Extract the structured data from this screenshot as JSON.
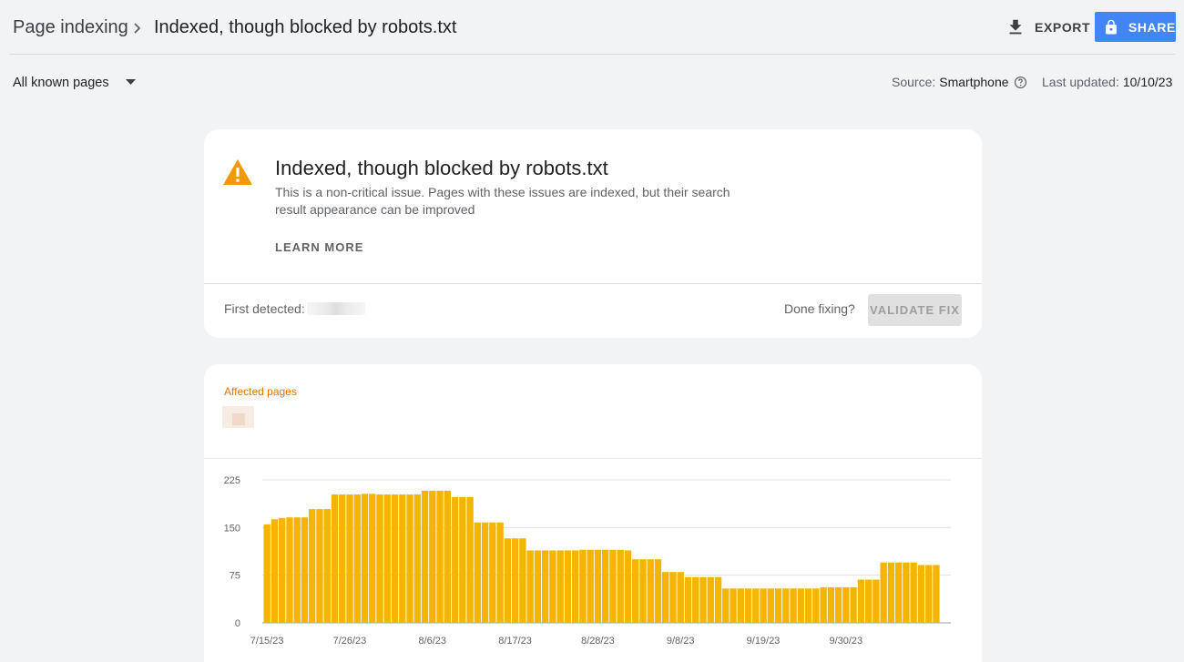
{
  "header": {
    "breadcrumb_root": "Page indexing",
    "breadcrumb_current": "Indexed, though blocked by robots.txt",
    "export_label": "EXPORT",
    "share_label": "SHARE"
  },
  "filters": {
    "pages_selected": "All known pages",
    "source_label": "Source:",
    "source_value": "Smartphone",
    "updated_label": "Last updated:",
    "updated_value": "10/10/23"
  },
  "issue": {
    "title": "Indexed, though blocked by robots.txt",
    "description": "This is a non-critical issue. Pages with these issues are indexed, but their search result appearance can be improved",
    "learn_more": "LEARN MORE",
    "first_detected_label": "First detected:",
    "done_fixing_label": "Done fixing?",
    "validate_label": "VALIDATE FIX"
  },
  "chart_panel": {
    "affected_label": "Affected pages"
  },
  "colors": {
    "bar": "#f4b400",
    "accent": "#4285f4",
    "warning": "#f29900",
    "affected_text": "#e37400"
  },
  "icons": {
    "breadcrumb_separator": "chevron-right-icon",
    "export": "download-icon",
    "share": "lock-icon",
    "filter": "caret-down-icon",
    "source_help": "help-circle-icon",
    "issue": "warning-triangle-icon"
  },
  "chart_data": {
    "type": "bar",
    "y_ticks": [
      "0",
      "75",
      "150",
      "225"
    ],
    "ylim": [
      0,
      225
    ],
    "x_tick_labels": [
      "7/15/23",
      "7/26/23",
      "8/6/23",
      "8/17/23",
      "8/28/23",
      "9/8/23",
      "9/19/23",
      "9/30/23"
    ],
    "x_start": "7/15/23",
    "values": [
      155,
      163,
      165,
      166,
      166,
      166,
      179,
      179,
      179,
      202,
      202,
      202,
      202,
      203,
      203,
      202,
      202,
      202,
      202,
      202,
      202,
      208,
      208,
      208,
      208,
      198,
      198,
      198,
      158,
      158,
      158,
      158,
      133,
      133,
      133,
      114,
      114,
      114,
      114,
      114,
      114,
      114,
      115,
      115,
      115,
      115,
      115,
      115,
      114,
      100,
      100,
      100,
      100,
      80,
      80,
      80,
      72,
      72,
      72,
      72,
      72,
      54,
      54,
      54,
      54,
      54,
      54,
      54,
      54,
      54,
      54,
      54,
      54,
      54,
      56,
      56,
      56,
      56,
      56,
      68,
      68,
      68,
      95,
      95,
      95,
      95,
      95,
      91,
      91,
      91
    ],
    "grid": true,
    "legend": "none"
  }
}
